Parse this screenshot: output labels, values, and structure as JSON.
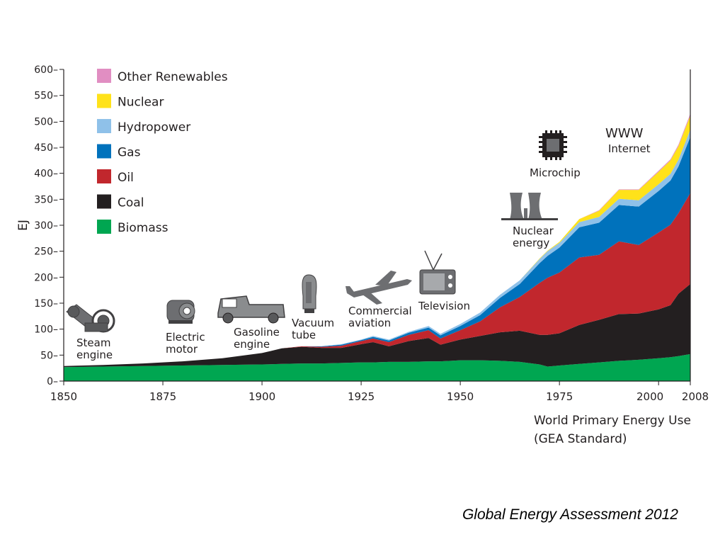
{
  "caption": "Global Energy Assessment 2012",
  "chart_data": {
    "type": "area",
    "stacked": true,
    "ylabel": "EJ",
    "xlabel": "World Primary Energy Use\n(GEA Standard)",
    "xlim": [
      1850,
      2008
    ],
    "ylim": [
      0,
      600
    ],
    "x_ticks": [
      "1850",
      "1875",
      "1900",
      "1925",
      "1950",
      "1975",
      "2000",
      "2008"
    ],
    "y_ticks": [
      "0",
      "50",
      "100",
      "150",
      "200",
      "250",
      "300",
      "350",
      "400",
      "450",
      "500",
      "550",
      "600"
    ],
    "legend_position": "top-left",
    "x": [
      1850,
      1860,
      1870,
      1880,
      1890,
      1900,
      1905,
      1910,
      1915,
      1920,
      1925,
      1928,
      1932,
      1937,
      1942,
      1945,
      1950,
      1955,
      1960,
      1965,
      1970,
      1972,
      1975,
      1980,
      1985,
      1990,
      1995,
      2000,
      2003,
      2005,
      2008
    ],
    "series": [
      {
        "name": "Biomass",
        "color": "#00a651",
        "values": [
          27,
          28,
          29,
          30,
          31,
          32,
          33,
          34,
          34,
          35,
          36,
          36,
          37,
          37,
          38,
          38,
          40,
          40,
          39,
          37,
          32,
          28,
          30,
          33,
          36,
          39,
          41,
          44,
          46,
          48,
          52
        ]
      },
      {
        "name": "Coal",
        "color": "#231f20",
        "values": [
          2,
          3,
          5,
          8,
          13,
          22,
          30,
          32,
          30,
          29,
          35,
          39,
          30,
          40,
          45,
          32,
          40,
          47,
          55,
          60,
          57,
          61,
          62,
          75,
          82,
          90,
          89,
          94,
          100,
          120,
          135
        ]
      },
      {
        "name": "Oil",
        "color": "#c1272d",
        "values": [
          0,
          0,
          0,
          0,
          0,
          0,
          0,
          1,
          2,
          4,
          6,
          7,
          8,
          12,
          15,
          12,
          18,
          28,
          48,
          65,
          100,
          110,
          117,
          130,
          125,
          140,
          132,
          148,
          155,
          155,
          175
        ]
      },
      {
        "name": "Gas",
        "color": "#0072bc",
        "values": [
          0,
          0,
          0,
          0,
          0,
          0,
          0,
          0,
          1,
          2,
          2,
          3,
          3,
          4,
          5,
          6,
          8,
          12,
          18,
          25,
          38,
          42,
          48,
          58,
          62,
          70,
          74,
          80,
          85,
          90,
          108
        ]
      },
      {
        "name": "Hydropower",
        "color": "#8fc1e9",
        "values": [
          0,
          0,
          0,
          0,
          0,
          0,
          0,
          0,
          0,
          1,
          1,
          2,
          2,
          2,
          3,
          3,
          4,
          5,
          6,
          7,
          8,
          9,
          9,
          10,
          11,
          12,
          12,
          13,
          13,
          13,
          14
        ]
      },
      {
        "name": "Nuclear",
        "color": "#ffe21a",
        "values": [
          0,
          0,
          0,
          0,
          0,
          0,
          0,
          0,
          0,
          0,
          0,
          0,
          0,
          0,
          0,
          0,
          0,
          0,
          0,
          0,
          1,
          1,
          2,
          6,
          12,
          17,
          20,
          24,
          26,
          26,
          27
        ]
      },
      {
        "name": "Other Renewables",
        "color": "#e18ec2",
        "values": [
          0,
          0,
          0,
          0,
          0,
          0,
          0,
          0,
          0,
          0,
          0,
          0,
          0,
          0,
          0,
          0,
          0,
          0,
          0,
          0,
          0,
          0,
          0,
          0,
          1,
          1,
          1,
          2,
          2,
          3,
          4
        ]
      }
    ],
    "annotations": [
      {
        "label": "Steam\nengine",
        "icon": "steam-engine-icon"
      },
      {
        "label": "Electric\nmotor",
        "icon": "electric-motor-icon"
      },
      {
        "label": "Gasoline\nengine",
        "icon": "car-icon"
      },
      {
        "label": "Vacuum\ntube",
        "icon": "vacuum-tube-icon"
      },
      {
        "label": "Commercial\naviation",
        "icon": "airplane-icon"
      },
      {
        "label": "Television",
        "icon": "television-icon"
      },
      {
        "label": "Nuclear\nenergy",
        "icon": "cooling-tower-icon"
      },
      {
        "label": "Microchip",
        "icon": "microchip-icon"
      },
      {
        "label": "WWW",
        "icon": ""
      },
      {
        "label": "Internet",
        "icon": ""
      }
    ]
  }
}
